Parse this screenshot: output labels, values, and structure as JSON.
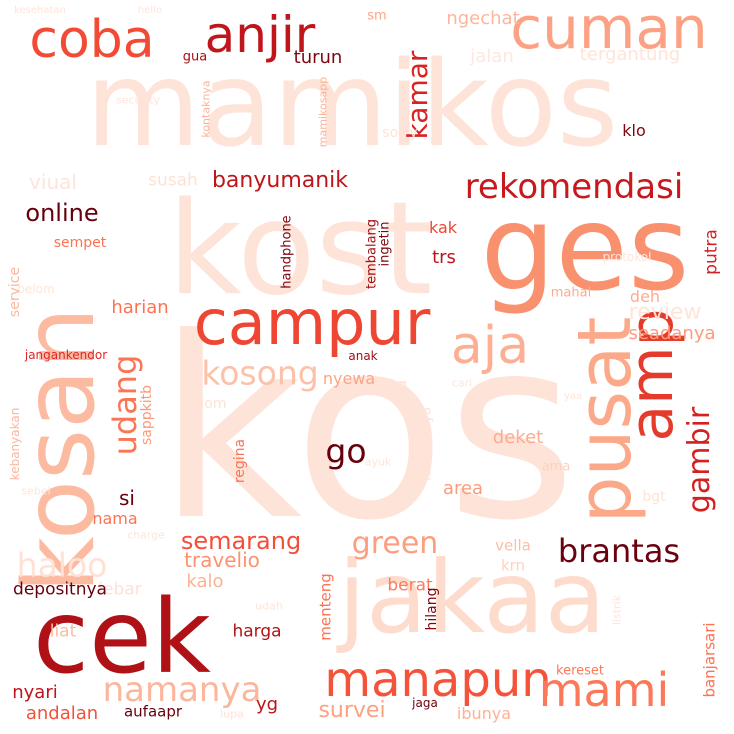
{
  "cloud": {
    "background": "#ffffff",
    "words": [
      {
        "text": "kos",
        "color": "#fee4d8"
      },
      {
        "text": "mamikos",
        "color": "#fee4d8"
      },
      {
        "text": "kost",
        "color": "#fee4d8"
      },
      {
        "text": "jakaa",
        "color": "#fedccd"
      },
      {
        "text": "kosan",
        "color": "#fcbba1"
      },
      {
        "text": "ges",
        "color": "#f9916e"
      },
      {
        "text": "cek",
        "color": "#b01116"
      },
      {
        "text": "campur",
        "color": "#ef4533"
      },
      {
        "text": "pusat",
        "color": "#fca98a"
      },
      {
        "text": "amp",
        "color": "#e53b2c"
      },
      {
        "text": "cuman",
        "color": "#fca183"
      },
      {
        "text": "coba",
        "color": "#f24a35"
      },
      {
        "text": "anjir",
        "color": "#c0151b"
      },
      {
        "text": "aja",
        "color": "#fcaf93"
      },
      {
        "text": "manapun",
        "color": "#f5523a"
      },
      {
        "text": "mami",
        "color": "#fb7858"
      },
      {
        "text": "rekomendasi",
        "color": "#c7181d"
      },
      {
        "text": "brantas",
        "color": "#6b010e"
      },
      {
        "text": "namanya",
        "color": "#fcb69c"
      },
      {
        "text": "udang",
        "color": "#fb7555"
      },
      {
        "text": "kosong",
        "color": "#fcc1a8"
      },
      {
        "text": "green",
        "color": "#fc9e7f"
      },
      {
        "text": "gambir",
        "color": "#d32020"
      },
      {
        "text": "go",
        "color": "#67000d"
      },
      {
        "text": "kamar",
        "color": "#d72322"
      },
      {
        "text": "haloo",
        "color": "#fee2d5"
      },
      {
        "text": "banyumanik",
        "color": "#bd151a"
      },
      {
        "text": "semarang",
        "color": "#f44d38"
      },
      {
        "text": "online",
        "color": "#67000d"
      },
      {
        "text": "survei",
        "color": "#fca183"
      },
      {
        "text": "review",
        "color": "#fee5d9"
      },
      {
        "text": "travelio",
        "color": "#fc9272"
      },
      {
        "text": "viual",
        "color": "#fee5d9"
      },
      {
        "text": "susah",
        "color": "#fee2d5"
      },
      {
        "text": "ngechat",
        "color": "#fcb69c"
      },
      {
        "text": "jalan",
        "color": "#fee7dc"
      },
      {
        "text": "tergantung",
        "color": "#fee4d8"
      },
      {
        "text": "turun",
        "color": "#7f0610"
      },
      {
        "text": "gua",
        "color": "#a30f15"
      },
      {
        "text": "nyewa",
        "color": "#fca486"
      },
      {
        "text": "harian",
        "color": "#fb7353"
      },
      {
        "text": "seadanya",
        "color": "#fc9c7d"
      },
      {
        "text": "putra",
        "color": "#d32020"
      },
      {
        "text": "deh",
        "color": "#fcad90"
      },
      {
        "text": "trs",
        "color": "#bc141a"
      },
      {
        "text": "kak",
        "color": "#ef4533"
      },
      {
        "text": "si",
        "color": "#67000d"
      },
      {
        "text": "area",
        "color": "#fc9c7d"
      },
      {
        "text": "deket",
        "color": "#fcab8f"
      },
      {
        "text": "vella",
        "color": "#fcbda4"
      },
      {
        "text": "berat",
        "color": "#fb7c5c"
      },
      {
        "text": "krn",
        "color": "#fdd2bf"
      },
      {
        "text": "harga",
        "color": "#b31218"
      },
      {
        "text": "kalo",
        "color": "#fcb296"
      },
      {
        "text": "lebar",
        "color": "#fee2d5"
      },
      {
        "text": "depositnya",
        "color": "#67000d"
      },
      {
        "text": "nama",
        "color": "#fb7353"
      },
      {
        "text": "liat",
        "color": "#fcbba1"
      },
      {
        "text": "nyari",
        "color": "#bc141a"
      },
      {
        "text": "andalan",
        "color": "#f4503a"
      },
      {
        "text": "aufaapr",
        "color": "#67000d"
      },
      {
        "text": "lupa",
        "color": "#fee3d6"
      },
      {
        "text": "yg",
        "color": "#b81419"
      },
      {
        "text": "jaga",
        "color": "#6b010e"
      },
      {
        "text": "ibunya",
        "color": "#fcb296"
      },
      {
        "text": "kereset",
        "color": "#fb7858"
      },
      {
        "text": "mahal",
        "color": "#fcab8f"
      },
      {
        "text": "klo",
        "color": "#7f0610"
      },
      {
        "text": "sorry",
        "color": "#fee3d6"
      },
      {
        "text": "blom",
        "color": "#fee3d6"
      },
      {
        "text": "anak",
        "color": "#a30f15"
      },
      {
        "text": "aic",
        "color": "#fee5d9"
      },
      {
        "text": "yaa",
        "color": "#fee5d9"
      },
      {
        "text": "bgt",
        "color": "#fee3d6"
      },
      {
        "text": "ama",
        "color": "#fdd2bf"
      },
      {
        "text": "sempet",
        "color": "#fb7353"
      },
      {
        "text": "security",
        "color": "#fee5d9"
      },
      {
        "text": "jangankendor",
        "color": "#e0272a"
      },
      {
        "text": "protokol",
        "color": "#fee5d9"
      },
      {
        "text": "udah",
        "color": "#fee5d9"
      },
      {
        "text": "sm",
        "color": "#fca588"
      },
      {
        "text": "kesehatan",
        "color": "#fee5d9"
      },
      {
        "text": "hello",
        "color": "#fee5d9"
      },
      {
        "text": "sebel",
        "color": "#fee5d9"
      },
      {
        "text": "charge",
        "color": "#fee5d9"
      },
      {
        "text": "ayuk",
        "color": "#fee5d9"
      },
      {
        "text": "cari",
        "color": "#fee5d9"
      },
      {
        "text": "belom",
        "color": "#fee5d9"
      },
      {
        "text": "service",
        "color": "#fcb69c"
      },
      {
        "text": "kebanyakan",
        "color": "#fcb69c"
      },
      {
        "text": "sappkitb",
        "color": "#fc9879"
      },
      {
        "text": "regina",
        "color": "#fb7353"
      },
      {
        "text": "fasilitasnya",
        "color": "#fee3d6"
      },
      {
        "text": "via",
        "color": "#fee3d6"
      },
      {
        "text": "handphone",
        "color": "#7f0610"
      },
      {
        "text": "tembalang",
        "color": "#a30f15"
      },
      {
        "text": "ingetin",
        "color": "#7f0610"
      },
      {
        "text": "kontaknya",
        "color": "#fcb296"
      },
      {
        "text": "mamikosapp",
        "color": "#fcb296"
      },
      {
        "text": "menteng",
        "color": "#fb7353"
      },
      {
        "text": "hilang",
        "color": "#7f0610"
      },
      {
        "text": "listrik",
        "color": "#fee5d9"
      },
      {
        "text": "banjarsari",
        "color": "#fb7353"
      }
    ]
  }
}
